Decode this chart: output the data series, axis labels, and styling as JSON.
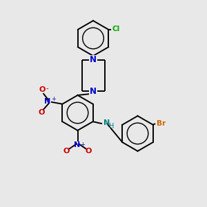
{
  "background_color": "#e8e8e8",
  "bond_color": "#000000",
  "N_color": "#0000cc",
  "O_color": "#cc0000",
  "Cl_color": "#00aa00",
  "Br_color": "#cc6600",
  "NH_color": "#008080",
  "figsize": [
    3.0,
    3.0
  ],
  "dpi": 100,
  "xlim": [
    0,
    10
  ],
  "ylim": [
    0,
    10
  ]
}
